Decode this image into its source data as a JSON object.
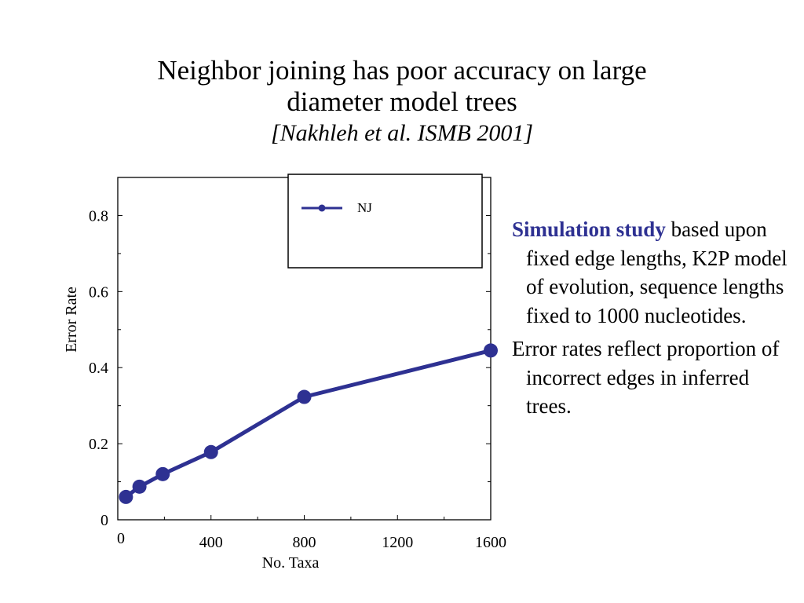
{
  "title": {
    "line1": "Neighbor joining has poor accuracy on large",
    "line2": "diameter model trees",
    "citation": "[Nakhleh et al. ISMB 2001]"
  },
  "side_text": {
    "p1_highlight": "Simulation study",
    "p1_rest": " based upon fixed edge lengths, K2P model of evolution, sequence lengths fixed to 1000 nucleotides.",
    "p2": "Error rates reflect proportion of incorrect edges in inferred trees."
  },
  "colors": {
    "series": "#2e3192",
    "highlight": "#2e3192"
  },
  "chart_data": {
    "type": "line",
    "xlabel": "No. Taxa",
    "ylabel": "Error Rate",
    "xlim": [
      0,
      1600
    ],
    "ylim": [
      0,
      0.9
    ],
    "xticks": [
      0,
      400,
      800,
      1200,
      1600
    ],
    "xtick_labels": [
      "0",
      "400",
      "800",
      "1200",
      "1600"
    ],
    "yticks": [
      0,
      0.2,
      0.4,
      0.6,
      0.8
    ],
    "ytick_labels": [
      "0",
      "0.2",
      "0.4",
      "0.6",
      "0.8"
    ],
    "legend_position": "top-right",
    "grid": false,
    "series": [
      {
        "name": "NJ",
        "x": [
          35,
          93,
          193,
          400,
          800,
          1600
        ],
        "y": [
          0.06,
          0.087,
          0.12,
          0.178,
          0.323,
          0.445
        ]
      }
    ]
  }
}
